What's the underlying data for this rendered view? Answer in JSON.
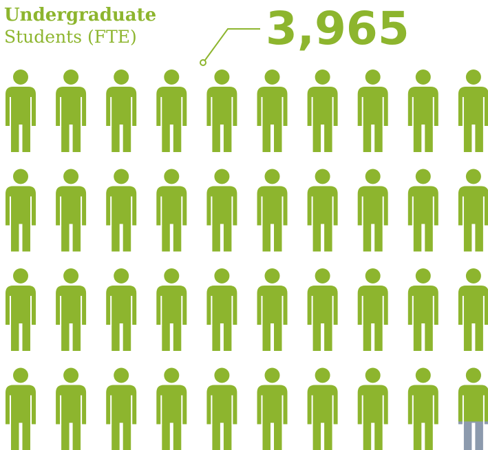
{
  "chart_data": {
    "type": "pictograph",
    "title": "Undergraduate",
    "subtitle": "Students (FTE)",
    "values": [
      3965
    ],
    "value_labels": [
      "3,965"
    ],
    "ylim": [
      0,
      4000
    ],
    "color": "#8db52e",
    "empty_color": "#8c9aad"
  }
}
